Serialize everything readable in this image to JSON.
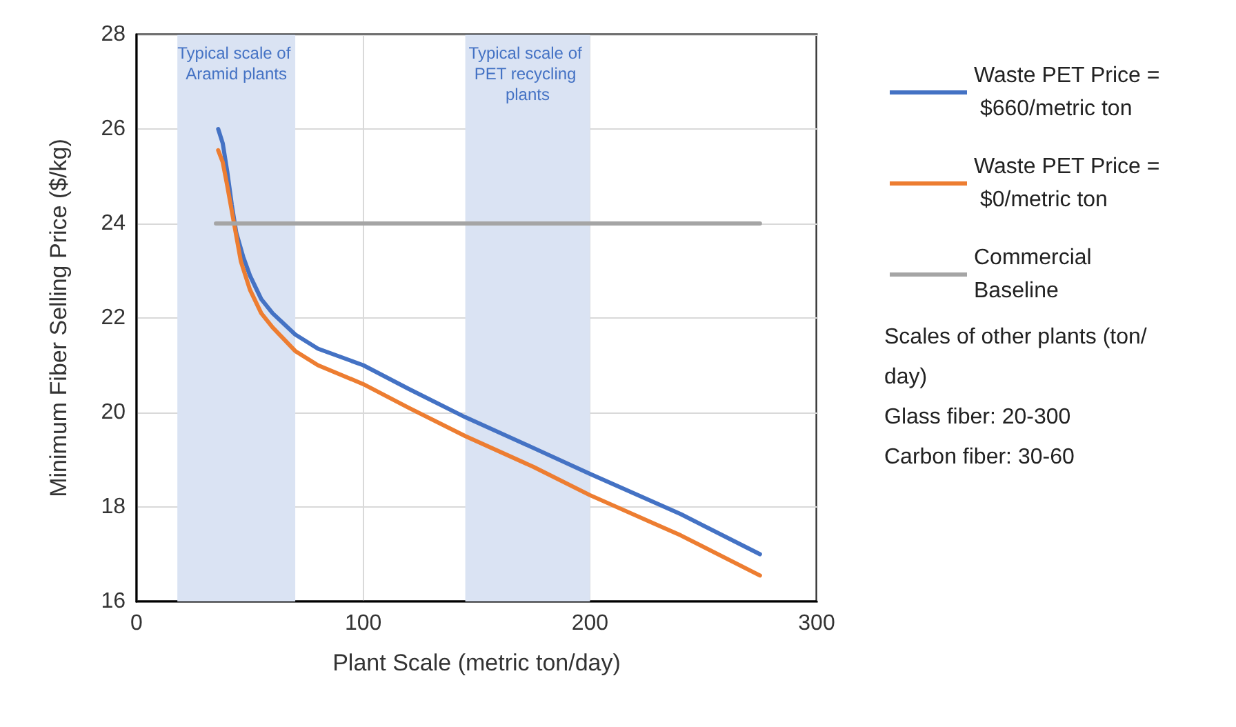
{
  "chart_data": {
    "type": "line",
    "xlabel": "Plant Scale (metric ton/day)",
    "ylabel": "Minimum Fiber Selling Price ($/kg)",
    "xlim": [
      0,
      300
    ],
    "xticks": [
      0,
      100,
      200,
      300
    ],
    "ylim": [
      16,
      28
    ],
    "yticks": [
      16,
      18,
      20,
      22,
      24,
      26,
      28
    ],
    "grid": true,
    "legend": "right",
    "marker": "none",
    "line_style": "solid",
    "series": [
      {
        "name": "Waste PET Price = $660/metric ton",
        "color": "#4472c4",
        "x": [
          36,
          38,
          40,
          42,
          44,
          47,
          50,
          55,
          60,
          70,
          80,
          100,
          120,
          145,
          175,
          200,
          240,
          275
        ],
        "values": [
          26.0,
          25.7,
          25.1,
          24.4,
          23.8,
          23.3,
          22.9,
          22.4,
          22.1,
          21.65,
          21.35,
          21.0,
          20.5,
          19.9,
          19.25,
          18.7,
          17.85,
          17.0
        ]
      },
      {
        "name": "Waste PET Price = $0/metric ton",
        "color": "#ed7d31",
        "x": [
          36,
          38,
          40,
          43,
          46,
          50,
          55,
          60,
          70,
          80,
          100,
          120,
          145,
          175,
          200,
          240,
          275
        ],
        "values": [
          25.55,
          25.3,
          24.8,
          24.0,
          23.2,
          22.6,
          22.1,
          21.8,
          21.3,
          21.0,
          20.6,
          20.1,
          19.5,
          18.85,
          18.25,
          17.4,
          16.55
        ]
      },
      {
        "name": "Commercial Baseline",
        "color": "#a5a5a5",
        "x": [
          35,
          275
        ],
        "values": [
          24,
          24
        ]
      }
    ],
    "bands": [
      {
        "axis": "x",
        "from": 18,
        "to": 70,
        "label": "Typical scale of Aramid plants",
        "color": "#dae3f3"
      },
      {
        "axis": "x",
        "from": 145,
        "to": 200,
        "label": "Typical scale of PET recycling plants",
        "color": "#dae3f3"
      }
    ],
    "annotations": [
      "Scales of other plants (ton/day)",
      "Glass fiber: 20-300",
      "Carbon fiber: 30-60"
    ]
  }
}
